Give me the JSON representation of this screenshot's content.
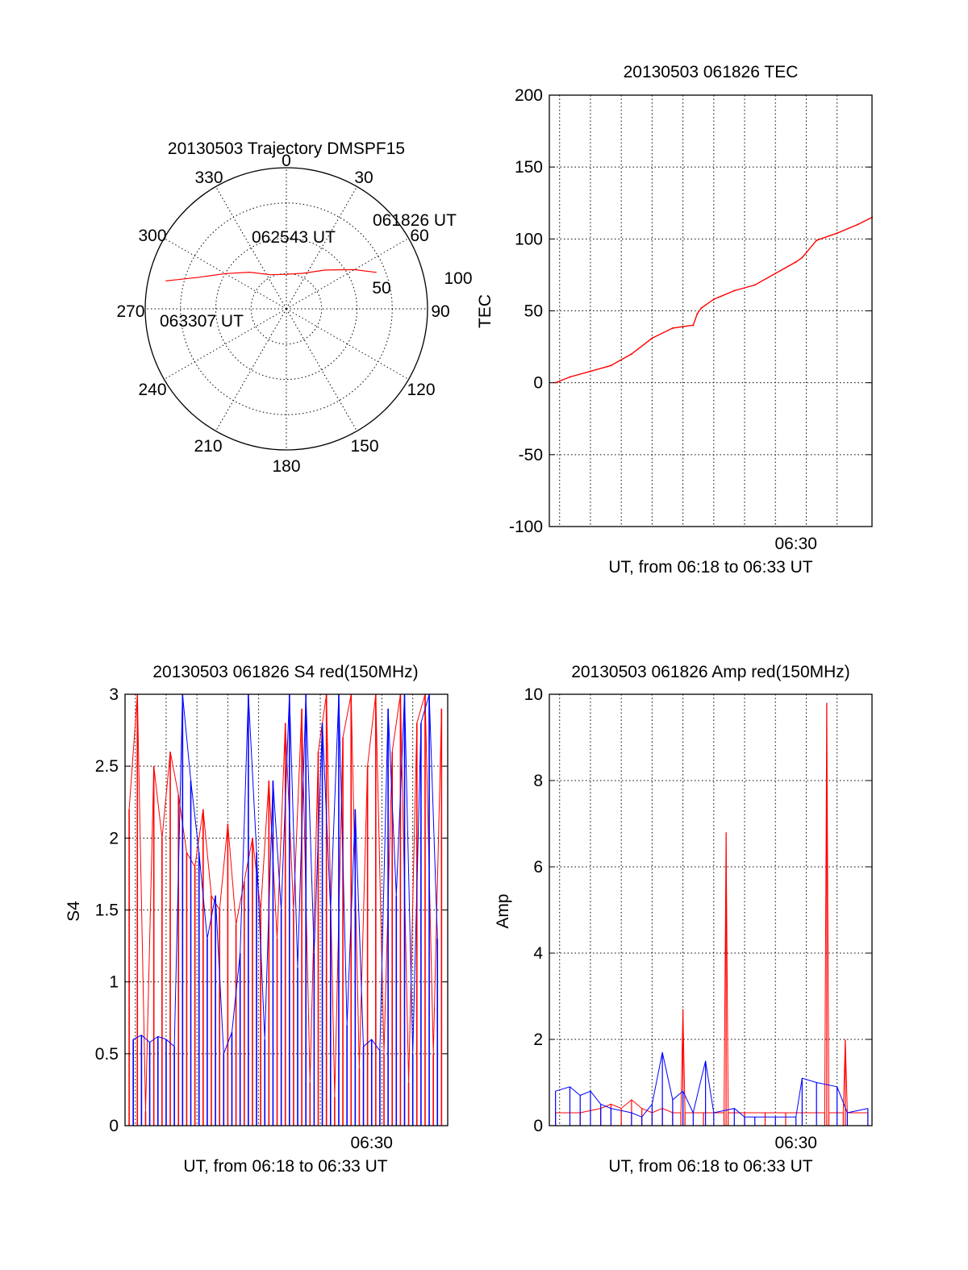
{
  "colors": {
    "red": "#ff0000",
    "blue": "#0000ff",
    "axis": "#000000"
  },
  "chart_data": [
    {
      "id": "polar",
      "type": "scatter",
      "title": "20130503 Trajectory DMSPF15",
      "angle_labels": [
        "0",
        "30",
        "60",
        "90",
        "120",
        "150",
        "180",
        "210",
        "240",
        "270",
        "300",
        "330"
      ],
      "radius_labels": [
        "50",
        "100"
      ],
      "trajectory": [
        {
          "az": 68,
          "el": 28
        },
        {
          "az": 60,
          "el": 40
        },
        {
          "az": 45,
          "el": 55
        },
        {
          "az": 25,
          "el": 65
        },
        {
          "az": 0,
          "el": 68
        },
        {
          "az": -25,
          "el": 66
        },
        {
          "az": -45,
          "el": 57
        },
        {
          "az": -60,
          "el": 45
        },
        {
          "az": -70,
          "el": 31
        },
        {
          "az": -75,
          "el": 18
        },
        {
          "az": -77,
          "el": 11
        }
      ],
      "annotations": [
        "061826 UT",
        "062543 UT",
        "063307 UT"
      ]
    },
    {
      "id": "tec",
      "type": "line",
      "title": "20130503 061826 TEC",
      "xlabel": "UT, from 06:18 to 06:33 UT",
      "ylabel": "TEC",
      "xlim": [
        0,
        15.7
      ],
      "ylim": [
        -100,
        200
      ],
      "yticks": [
        -100,
        -50,
        0,
        50,
        100,
        150,
        200
      ],
      "xticks": [
        {
          "x": 12,
          "label": "06:30"
        }
      ],
      "series": [
        {
          "name": "TEC",
          "color": "red",
          "x": [
            0.3,
            1,
            2,
            3,
            4,
            5,
            6,
            6.5,
            7,
            7.2,
            7.4,
            8,
            9,
            10,
            11,
            12,
            12.3,
            13,
            14,
            15,
            15.7
          ],
          "y": [
            0,
            4,
            8,
            12,
            20,
            31,
            38,
            39,
            40,
            48,
            52,
            58,
            64,
            68,
            76,
            84,
            87,
            99,
            104,
            110,
            115
          ]
        }
      ]
    },
    {
      "id": "s4",
      "type": "line",
      "title": "20130503 061826 S4 red(150MHz)",
      "xlabel": "UT, from 06:18 to 06:33 UT",
      "ylabel": "S4",
      "xlim": [
        0,
        15.7
      ],
      "ylim": [
        0,
        3
      ],
      "yticks": [
        0,
        0.5,
        1,
        1.5,
        2,
        2.5,
        3
      ],
      "ytick_labels": [
        "0",
        "0.5",
        "1",
        "1.5",
        "2",
        "2.5",
        "3"
      ],
      "xticks": [
        {
          "x": 12,
          "label": "06:30"
        }
      ],
      "series": [
        {
          "name": "S4 red",
          "color": "red",
          "x": [
            0.2,
            0.6,
            1.0,
            1.4,
            1.8,
            2.2,
            2.6,
            3.0,
            3.4,
            3.8,
            4.2,
            4.6,
            5.0,
            5.4,
            5.8,
            6.2,
            6.6,
            7.0,
            7.4,
            7.8,
            8.2,
            8.6,
            9.0,
            9.4,
            9.8,
            10.2,
            10.6,
            11.0,
            11.4,
            11.8,
            12.2,
            12.6,
            13.0,
            13.4,
            13.8,
            14.2,
            14.6,
            15.0,
            15.4
          ],
          "y": [
            2.2,
            3.0,
            0.1,
            2.5,
            2.0,
            2.6,
            2.3,
            1.9,
            1.8,
            2.2,
            1.6,
            1.5,
            2.1,
            1.4,
            1.7,
            2.0,
            1.5,
            2.4,
            1.3,
            2.8,
            1.5,
            2.9,
            0.3,
            2.6,
            3.0,
            0.2,
            2.7,
            3.0,
            0.4,
            2.5,
            3.0,
            0.5,
            2.6,
            3.0,
            0.3,
            2.8,
            3.0,
            0.5,
            2.9
          ]
        },
        {
          "name": "S4 blue",
          "color": "blue",
          "x": [
            0.4,
            0.8,
            1.2,
            1.6,
            2.0,
            2.4,
            2.8,
            3.2,
            3.6,
            4.0,
            4.4,
            4.8,
            5.2,
            5.6,
            6.0,
            6.4,
            6.8,
            7.2,
            7.6,
            8.0,
            8.4,
            8.8,
            9.2,
            9.6,
            10.0,
            10.4,
            10.8,
            11.2,
            11.6,
            12.0,
            12.4,
            12.8,
            13.2,
            13.6,
            14.0,
            14.4,
            14.8,
            15.2
          ],
          "y": [
            0.6,
            0.63,
            0.58,
            0.62,
            0.6,
            0.55,
            3.0,
            2.4,
            1.9,
            1.3,
            1.6,
            0.5,
            0.65,
            1.2,
            3.0,
            1.9,
            0.6,
            2.4,
            1.5,
            3.0,
            1.1,
            3.0,
            1.2,
            2.8,
            1.5,
            3.0,
            0.7,
            2.2,
            0.55,
            0.6,
            0.52,
            2.9,
            1.6,
            3.0,
            0.5,
            2.8,
            3.0,
            1.3
          ]
        }
      ]
    },
    {
      "id": "amp",
      "type": "line",
      "title": "20130503 061826 Amp red(150MHz)",
      "xlabel": "UT, from 06:18 to 06:33 UT",
      "ylabel": "Amp",
      "xlim": [
        0,
        15.7
      ],
      "ylim": [
        0,
        10
      ],
      "yticks": [
        0,
        2,
        4,
        6,
        8,
        10
      ],
      "xticks": [
        {
          "x": 12,
          "label": "06:30"
        }
      ],
      "series": [
        {
          "name": "Amp red",
          "color": "red",
          "x": [
            0.3,
            1.5,
            2.5,
            3.0,
            3.5,
            4.0,
            4.5,
            5.0,
            5.5,
            6.0,
            6.4,
            6.5,
            6.6,
            7.5,
            8.5,
            8.6,
            8.7,
            9.5,
            10.5,
            11.5,
            13.4,
            13.5,
            13.6,
            14.3,
            14.4,
            14.5,
            15.5
          ],
          "y": [
            0.3,
            0.3,
            0.4,
            0.5,
            0.4,
            0.6,
            0.4,
            0.3,
            0.4,
            0.3,
            0.3,
            2.7,
            0.3,
            0.3,
            0.3,
            6.8,
            0.3,
            0.3,
            0.3,
            0.3,
            0.3,
            9.8,
            0.3,
            0.3,
            2.0,
            0.3,
            0.3
          ]
        },
        {
          "name": "Amp blue",
          "color": "blue",
          "x": [
            0.3,
            1.0,
            1.5,
            2.0,
            2.5,
            3.0,
            4.0,
            4.5,
            5.0,
            5.5,
            6.0,
            6.5,
            7.0,
            7.6,
            8.0,
            9.0,
            9.5,
            10.0,
            11.0,
            12.0,
            12.3,
            13.0,
            14.0,
            14.5,
            15.5
          ],
          "y": [
            0.8,
            0.9,
            0.7,
            0.8,
            0.5,
            0.4,
            0.3,
            0.2,
            0.5,
            1.7,
            0.6,
            0.8,
            0.3,
            1.5,
            0.3,
            0.4,
            0.2,
            0.2,
            0.2,
            0.2,
            1.1,
            1.0,
            0.9,
            0.3,
            0.4
          ]
        }
      ]
    }
  ]
}
